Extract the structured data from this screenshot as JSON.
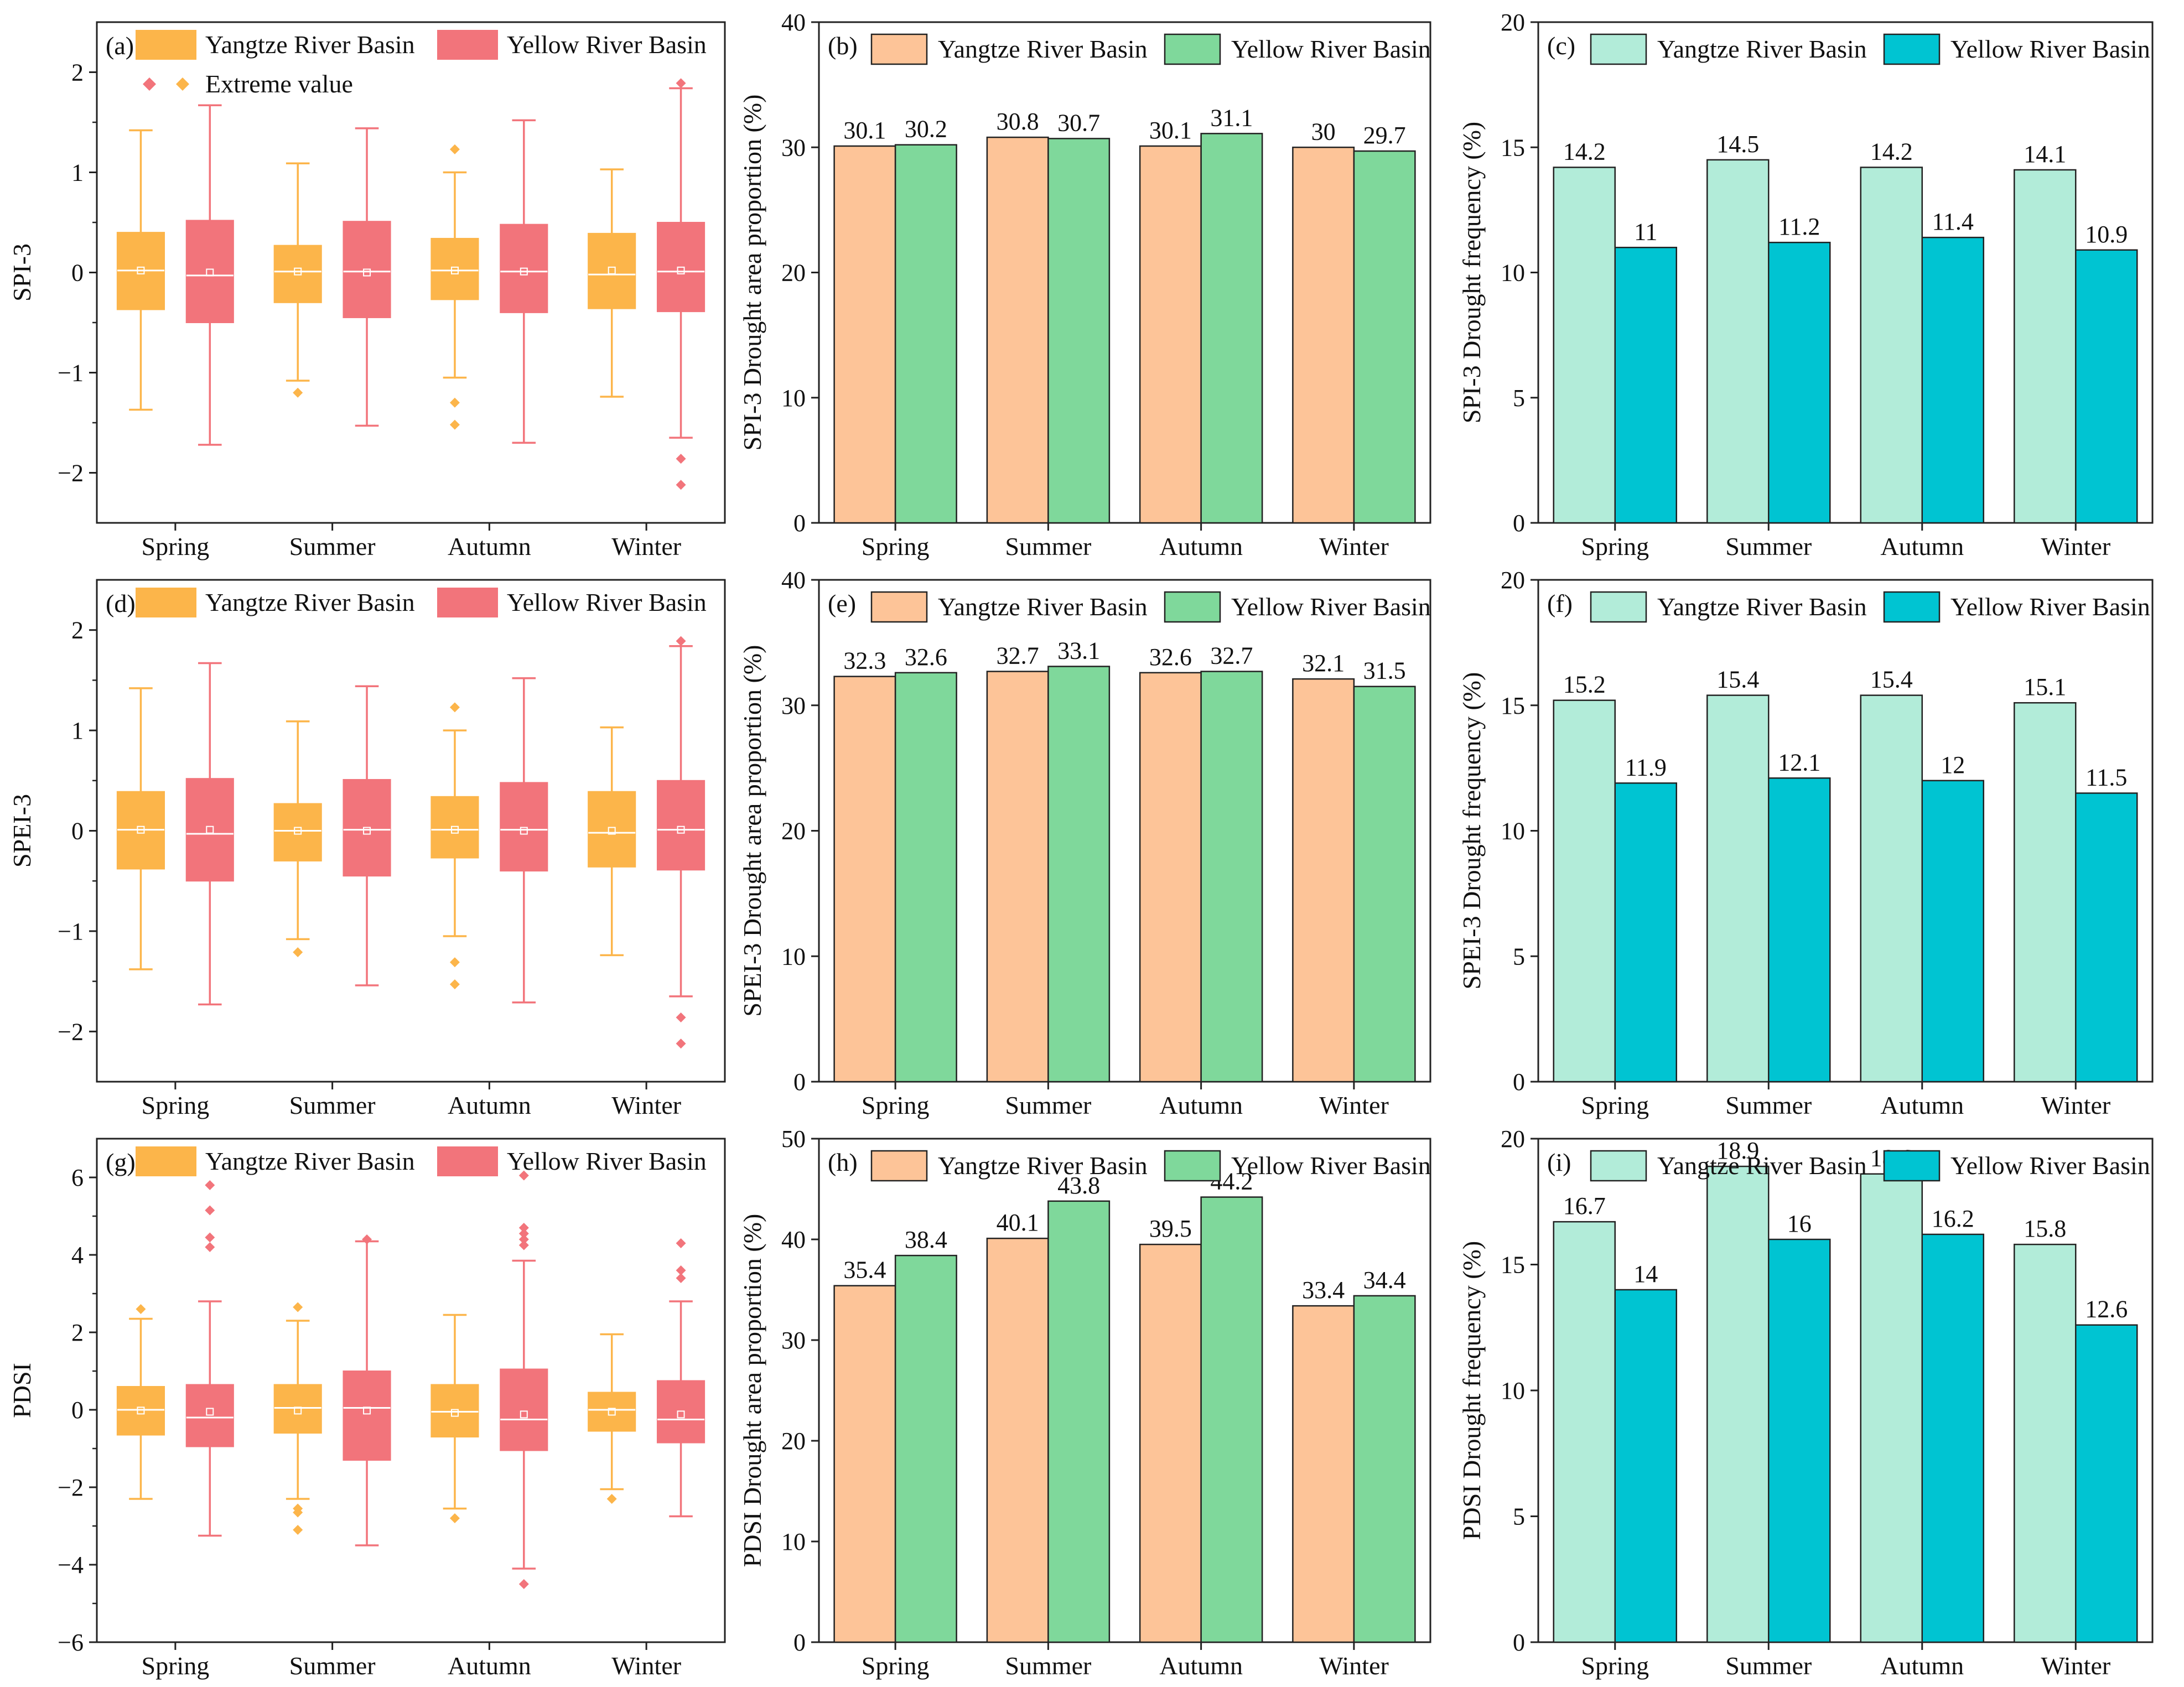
{
  "seasons": [
    "Spring",
    "Summer",
    "Autumn",
    "Winter"
  ],
  "legend_labels": {
    "yangtze_a": "Yangtze River Basin",
    "yellow_a": "Yellow River Basin",
    "yangtze": "Yangtze River Basin",
    "yellow": "Yellow River Basin",
    "extreme": "Extreme value"
  },
  "colors": {
    "box_yangtze": "#fcb54a",
    "box_yellow": "#f2747b",
    "bar_yangtze_area": "#fdc498",
    "bar_yellow_area": "#7fd89b",
    "bar_yangtze_freq": "#b2ecd9",
    "bar_yellow_freq": "#00c4d2"
  },
  "chart_data": [
    {
      "id": "a",
      "type": "box",
      "panel_label": "(a)",
      "ylabel": "SPI-3",
      "ylim": [
        -2.5,
        2.5
      ],
      "yticks": [
        -2,
        -1,
        0,
        1,
        2
      ],
      "categories": [
        "Spring",
        "Summer",
        "Autumn",
        "Winter"
      ],
      "series": [
        {
          "name": "Yangtze River Basin",
          "boxes": [
            {
              "whislo": -1.37,
              "q1": -0.37,
              "med": 0.02,
              "mean": 0.02,
              "q3": 0.4,
              "whishi": 1.42,
              "fliers": []
            },
            {
              "whislo": -1.08,
              "q1": -0.3,
              "med": 0.01,
              "mean": 0.01,
              "q3": 0.27,
              "whishi": 1.09,
              "fliers": [
                -1.2
              ]
            },
            {
              "whislo": -1.05,
              "q1": -0.27,
              "med": 0.02,
              "mean": 0.02,
              "q3": 0.34,
              "whishi": 1.0,
              "fliers": [
                1.23,
                -1.3,
                -1.52
              ]
            },
            {
              "whislo": -1.24,
              "q1": -0.36,
              "med": -0.02,
              "mean": 0.02,
              "q3": 0.39,
              "whishi": 1.03,
              "fliers": []
            }
          ]
        },
        {
          "name": "Yellow River Basin",
          "boxes": [
            {
              "whislo": -1.72,
              "q1": -0.5,
              "med": -0.03,
              "mean": 0.0,
              "q3": 0.52,
              "whishi": 1.67,
              "fliers": []
            },
            {
              "whislo": -1.53,
              "q1": -0.45,
              "med": 0.01,
              "mean": 0.0,
              "q3": 0.51,
              "whishi": 1.44,
              "fliers": []
            },
            {
              "whislo": -1.7,
              "q1": -0.4,
              "med": 0.01,
              "mean": 0.01,
              "q3": 0.48,
              "whishi": 1.52,
              "fliers": []
            },
            {
              "whislo": -1.65,
              "q1": -0.39,
              "med": 0.01,
              "mean": 0.02,
              "q3": 0.5,
              "whishi": 1.84,
              "fliers": [
                1.89,
                -1.86,
                -2.12
              ]
            }
          ]
        }
      ]
    },
    {
      "id": "b",
      "type": "bar",
      "panel_label": "(b)",
      "ylabel": "SPI-3 Drought area proportion (%)",
      "ylim": [
        0,
        40
      ],
      "yticks": [
        0,
        10,
        20,
        30,
        40
      ],
      "categories": [
        "Spring",
        "Summer",
        "Autumn",
        "Winter"
      ],
      "series": [
        {
          "name": "Yangtze River Basin",
          "values": [
            30.1,
            30.8,
            30.1,
            30
          ]
        },
        {
          "name": "Yellow River Basin",
          "values": [
            30.2,
            30.7,
            31.1,
            29.7
          ]
        }
      ]
    },
    {
      "id": "c",
      "type": "bar",
      "panel_label": "(c)",
      "ylabel": "SPI-3 Drought frequency (%)",
      "ylim": [
        0,
        20
      ],
      "yticks": [
        0,
        5,
        10,
        15,
        20
      ],
      "categories": [
        "Spring",
        "Summer",
        "Autumn",
        "Winter"
      ],
      "series": [
        {
          "name": "Yangtze River Basin",
          "values": [
            14.2,
            14.5,
            14.2,
            14.1
          ]
        },
        {
          "name": "Yellow River Basin",
          "values": [
            11,
            11.2,
            11.4,
            10.9
          ]
        }
      ]
    },
    {
      "id": "d",
      "type": "box",
      "panel_label": "(d)",
      "ylabel": "SPEI-3",
      "ylim": [
        -2.5,
        2.5
      ],
      "yticks": [
        -2,
        -1,
        0,
        1,
        2
      ],
      "categories": [
        "Spring",
        "Summer",
        "Autumn",
        "Winter"
      ],
      "series": [
        {
          "name": "Yangtze River Basin",
          "boxes": [
            {
              "whislo": -1.38,
              "q1": -0.38,
              "med": 0.01,
              "mean": 0.01,
              "q3": 0.39,
              "whishi": 1.42,
              "fliers": []
            },
            {
              "whislo": -1.08,
              "q1": -0.3,
              "med": 0.0,
              "mean": 0.0,
              "q3": 0.27,
              "whishi": 1.09,
              "fliers": [
                -1.21
              ]
            },
            {
              "whislo": -1.05,
              "q1": -0.27,
              "med": 0.01,
              "mean": 0.01,
              "q3": 0.34,
              "whishi": 1.0,
              "fliers": [
                1.23,
                -1.31,
                -1.53
              ]
            },
            {
              "whislo": -1.24,
              "q1": -0.36,
              "med": -0.02,
              "mean": 0.0,
              "q3": 0.39,
              "whishi": 1.03,
              "fliers": []
            }
          ]
        },
        {
          "name": "Yellow River Basin",
          "boxes": [
            {
              "whislo": -1.73,
              "q1": -0.5,
              "med": -0.03,
              "mean": 0.01,
              "q3": 0.52,
              "whishi": 1.67,
              "fliers": []
            },
            {
              "whislo": -1.54,
              "q1": -0.45,
              "med": 0.01,
              "mean": 0.0,
              "q3": 0.51,
              "whishi": 1.44,
              "fliers": []
            },
            {
              "whislo": -1.71,
              "q1": -0.4,
              "med": 0.01,
              "mean": 0.0,
              "q3": 0.48,
              "whishi": 1.52,
              "fliers": []
            },
            {
              "whislo": -1.65,
              "q1": -0.39,
              "med": 0.01,
              "mean": 0.01,
              "q3": 0.5,
              "whishi": 1.84,
              "fliers": [
                1.89,
                -1.86,
                -2.12
              ]
            }
          ]
        }
      ]
    },
    {
      "id": "e",
      "type": "bar",
      "panel_label": "(e)",
      "ylabel": "SPEI-3 Drought area proportion (%)",
      "ylim": [
        0,
        40
      ],
      "yticks": [
        0,
        10,
        20,
        30,
        40
      ],
      "categories": [
        "Spring",
        "Summer",
        "Autumn",
        "Winter"
      ],
      "series": [
        {
          "name": "Yangtze River Basin",
          "values": [
            32.3,
            32.7,
            32.6,
            32.1
          ]
        },
        {
          "name": "Yellow River Basin",
          "values": [
            32.6,
            33.1,
            32.7,
            31.5
          ]
        }
      ]
    },
    {
      "id": "f",
      "type": "bar",
      "panel_label": "(f)",
      "ylabel": "SPEI-3 Drought frequency (%)",
      "ylim": [
        0,
        20
      ],
      "yticks": [
        0,
        5,
        10,
        15,
        20
      ],
      "categories": [
        "Spring",
        "Summer",
        "Autumn",
        "Winter"
      ],
      "series": [
        {
          "name": "Yangtze River Basin",
          "values": [
            15.2,
            15.4,
            15.4,
            15.1
          ]
        },
        {
          "name": "Yellow River Basin",
          "values": [
            11.9,
            12.1,
            12,
            11.5
          ]
        }
      ]
    },
    {
      "id": "g",
      "type": "box",
      "panel_label": "(g)",
      "ylabel": "PDSI",
      "ylim": [
        -6,
        7
      ],
      "yticks": [
        -6,
        -4,
        -2,
        0,
        2,
        4,
        6
      ],
      "categories": [
        "Spring",
        "Summer",
        "Autumn",
        "Winter"
      ],
      "series": [
        {
          "name": "Yangtze River Basin",
          "boxes": [
            {
              "whislo": -2.3,
              "q1": -0.65,
              "med": 0.0,
              "mean": -0.02,
              "q3": 0.6,
              "whishi": 2.35,
              "fliers": [
                2.6
              ]
            },
            {
              "whislo": -2.3,
              "q1": -0.6,
              "med": 0.05,
              "mean": -0.02,
              "q3": 0.65,
              "whishi": 2.3,
              "fliers": [
                2.65,
                -2.55,
                -2.65,
                -3.1
              ]
            },
            {
              "whislo": -2.55,
              "q1": -0.7,
              "med": -0.05,
              "mean": -0.08,
              "q3": 0.65,
              "whishi": 2.45,
              "fliers": [
                -2.8
              ]
            },
            {
              "whislo": -2.05,
              "q1": -0.55,
              "med": 0.0,
              "mean": -0.05,
              "q3": 0.45,
              "whishi": 1.95,
              "fliers": [
                -2.3
              ]
            }
          ]
        },
        {
          "name": "Yellow River Basin",
          "boxes": [
            {
              "whislo": -3.25,
              "q1": -0.95,
              "med": -0.2,
              "mean": -0.05,
              "q3": 0.65,
              "whishi": 2.8,
              "fliers": [
                5.8,
                5.15,
                4.45,
                4.2
              ]
            },
            {
              "whislo": -3.5,
              "q1": -1.3,
              "med": 0.05,
              "mean": -0.02,
              "q3": 1.0,
              "whishi": 4.35,
              "fliers": [
                4.4
              ]
            },
            {
              "whislo": -4.1,
              "q1": -1.05,
              "med": -0.25,
              "mean": -0.12,
              "q3": 1.05,
              "whishi": 3.85,
              "fliers": [
                6.05,
                4.7,
                4.55,
                4.4,
                4.25,
                -4.5
              ]
            },
            {
              "whislo": -2.75,
              "q1": -0.85,
              "med": -0.25,
              "mean": -0.12,
              "q3": 0.75,
              "whishi": 2.8,
              "fliers": [
                4.3,
                3.6,
                3.4
              ]
            }
          ]
        }
      ]
    },
    {
      "id": "h",
      "type": "bar",
      "panel_label": "(h)",
      "ylabel": "PDSI Drought area proportion (%)",
      "ylim": [
        0,
        50
      ],
      "yticks": [
        0,
        10,
        20,
        30,
        40,
        50
      ],
      "categories": [
        "Spring",
        "Summer",
        "Autumn",
        "Winter"
      ],
      "series": [
        {
          "name": "Yangtze River Basin",
          "values": [
            35.4,
            40.1,
            39.5,
            33.4
          ]
        },
        {
          "name": "Yellow River Basin",
          "values": [
            38.4,
            43.8,
            44.2,
            34.4
          ]
        }
      ]
    },
    {
      "id": "i",
      "type": "bar",
      "panel_label": "(i)",
      "ylabel": "PDSI Drought frequency (%)",
      "ylim": [
        0,
        20
      ],
      "yticks": [
        0,
        5,
        10,
        15,
        20
      ],
      "categories": [
        "Spring",
        "Summer",
        "Autumn",
        "Winter"
      ],
      "series": [
        {
          "name": "Yangtze River Basin",
          "values": [
            16.7,
            18.9,
            18.6,
            15.8
          ]
        },
        {
          "name": "Yellow River Basin",
          "values": [
            14,
            16,
            16.2,
            12.6
          ]
        }
      ]
    }
  ]
}
